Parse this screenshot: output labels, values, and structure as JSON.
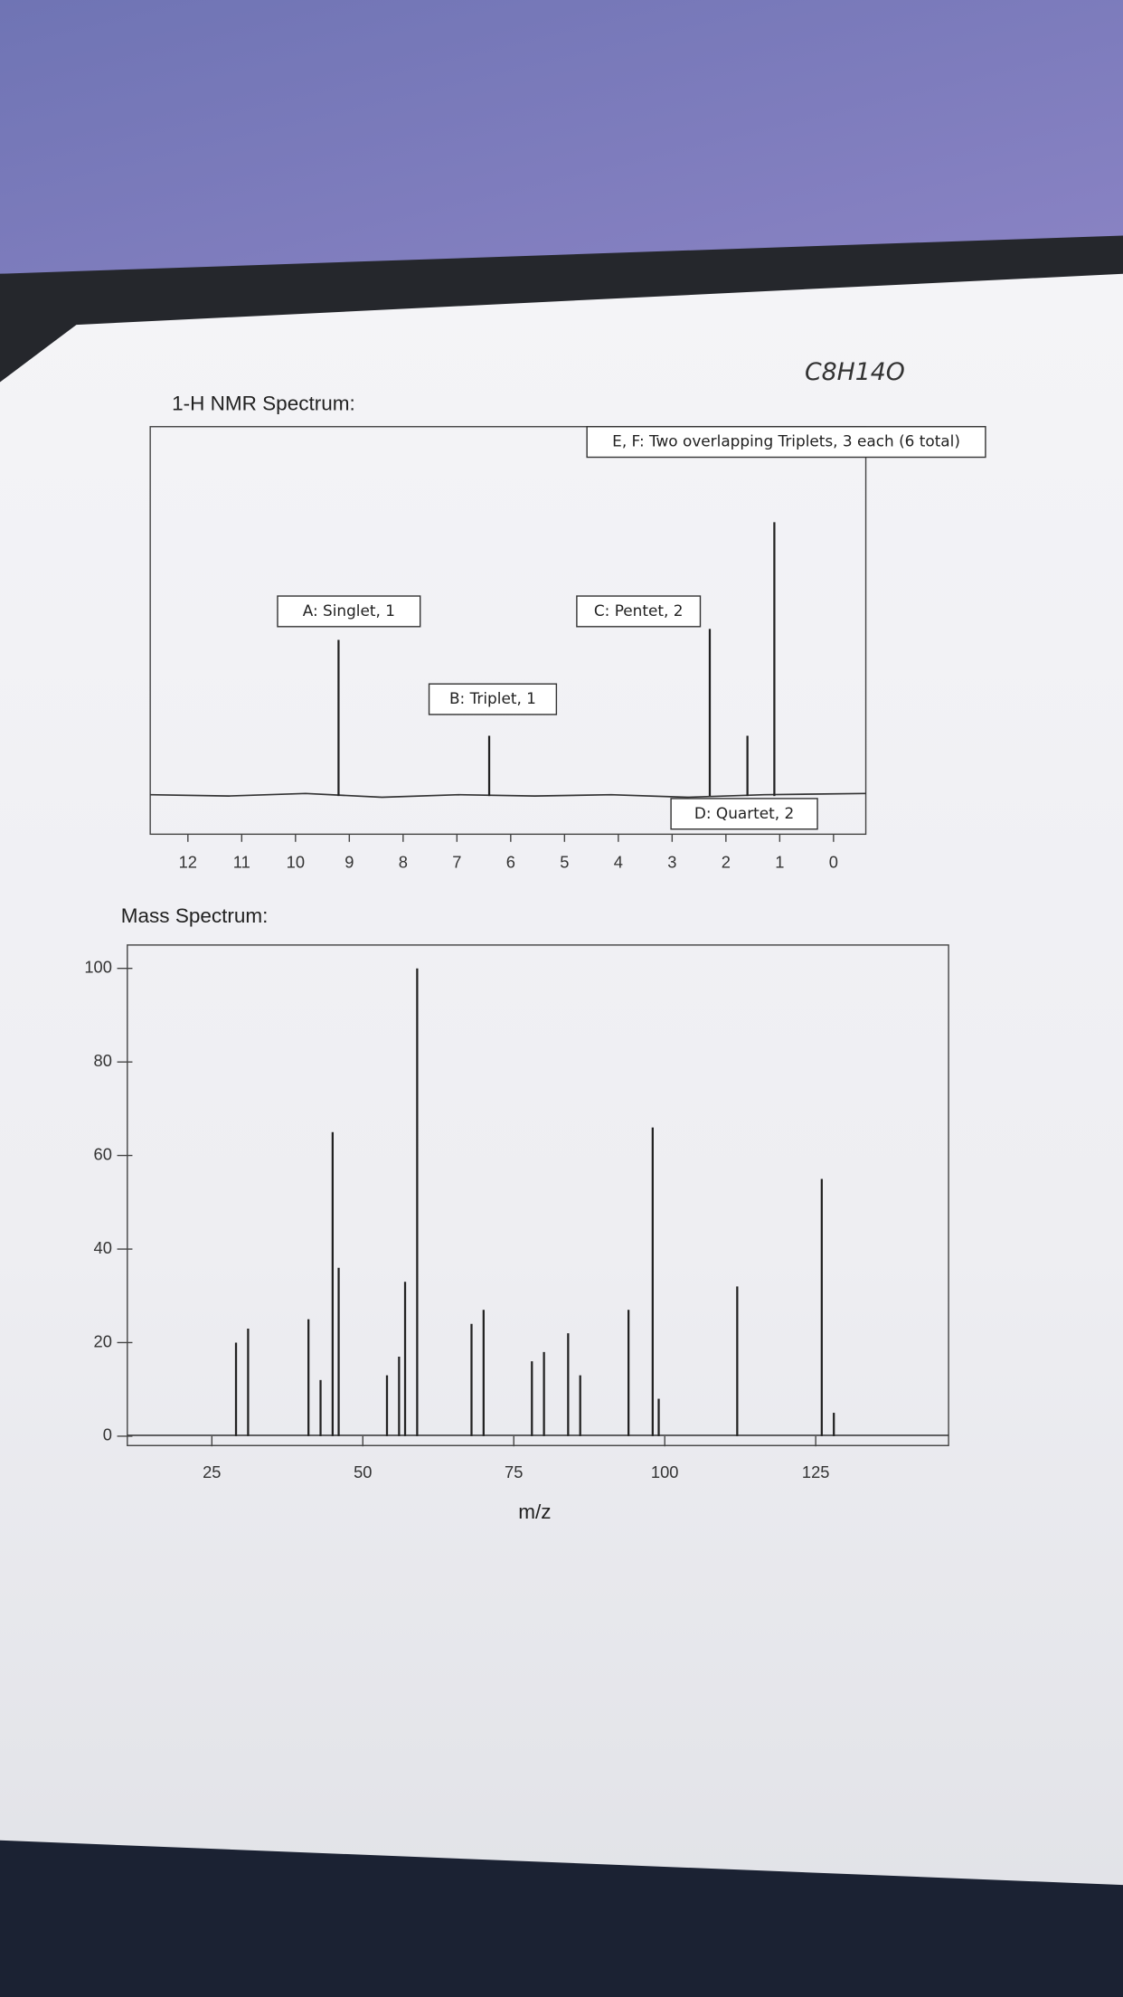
{
  "formula": "C8H14O",
  "chart_data": [
    {
      "type": "spectrum",
      "title": "1-H NMR Spectrum:",
      "annotations": [
        "A: Singlet, 1",
        "B: Triplet, 1",
        "C: Pentet, 2",
        "D: Quartet, 2",
        "E, F: Two overlapping Triplets, 3 each (6 total)"
      ],
      "x": [
        9.2,
        6.4,
        2.3,
        1.6,
        1.1
      ],
      "values": [
        57,
        22,
        61,
        22,
        100
      ],
      "color": "#222222",
      "xlim": [
        12.7,
        -0.6
      ],
      "xticks": [
        12,
        11,
        10,
        9,
        8,
        7,
        6,
        5,
        4,
        3,
        2,
        1,
        0
      ]
    },
    {
      "type": "spectrum",
      "title": "Mass Spectrum:",
      "xlabel": "m/z",
      "x": [
        29,
        31,
        41,
        43,
        45,
        46,
        54,
        56,
        57,
        59,
        68,
        70,
        78,
        80,
        84,
        86,
        94,
        98,
        99,
        112,
        126,
        128
      ],
      "values": [
        20,
        23,
        25,
        12,
        65,
        36,
        13,
        17,
        33,
        100,
        24,
        27,
        16,
        18,
        22,
        13,
        27,
        66,
        8,
        32,
        55,
        5
      ],
      "color": "#222222",
      "xlim": [
        11,
        147
      ],
      "xticks": [
        25,
        50,
        75,
        100,
        125
      ],
      "ylim": [
        -2,
        105
      ],
      "yticks": [
        0,
        20,
        40,
        60,
        80,
        100
      ]
    }
  ]
}
